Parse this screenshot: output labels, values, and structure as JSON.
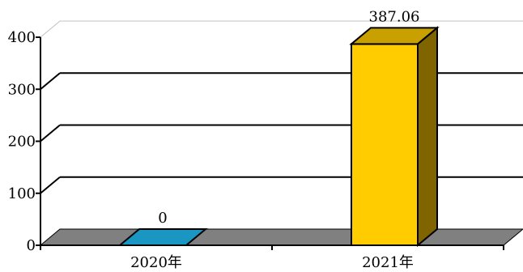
{
  "chart_data": {
    "type": "bar",
    "categories": [
      "2020年",
      "2021年"
    ],
    "values": [
      0,
      387.06
    ],
    "data_labels": [
      "0",
      "387.06"
    ],
    "ylim": [
      0,
      400
    ],
    "y_ticks": [
      0,
      100,
      200,
      300,
      400
    ],
    "y_tick_labels": [
      "0",
      "100",
      "200",
      "300",
      "400"
    ],
    "grid": true,
    "style": "3d-column",
    "colors": {
      "bars": [
        "#1a96c2",
        "#ffcc00"
      ],
      "bar_tops": [
        "#1a96c2",
        "#c8a000"
      ],
      "bar_sides": [
        "#0e6f90",
        "#806400"
      ],
      "floor": "#808080",
      "grid": "#000000"
    }
  }
}
